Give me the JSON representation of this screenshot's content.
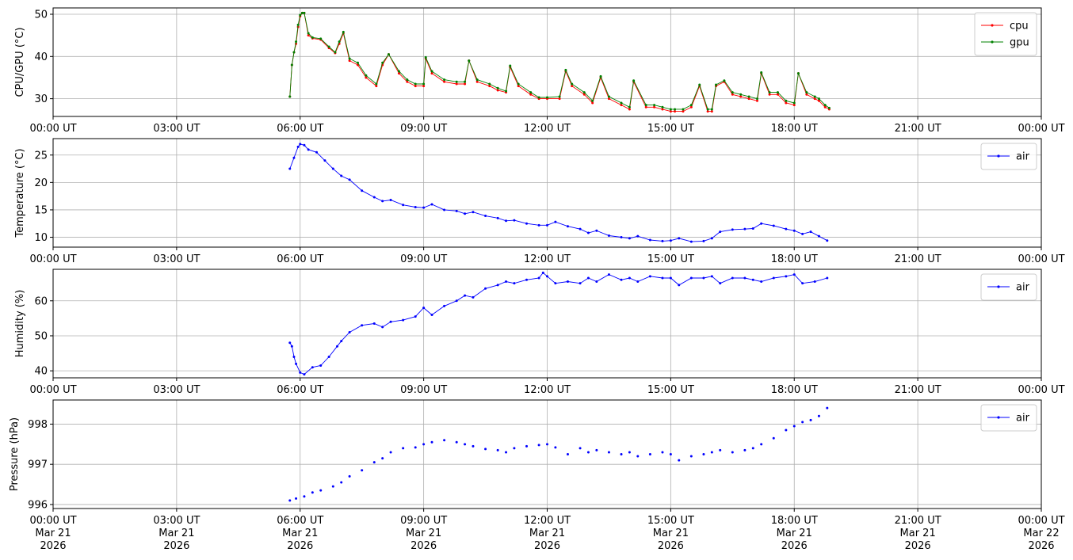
{
  "chart_data": [
    {
      "type": "line",
      "ylabel": "CPU/GPU (°C)",
      "ylim": [
        25.8,
        51.5
      ],
      "yticks": [
        30,
        40,
        50
      ],
      "xlim": [
        0,
        24
      ],
      "xticks": [
        0,
        3,
        6,
        9,
        12,
        15,
        18,
        21,
        24
      ],
      "x_tick_labels": [
        "00:00 UT",
        "03:00 UT",
        "06:00 UT",
        "09:00 UT",
        "12:00 UT",
        "15:00 UT",
        "18:00 UT",
        "21:00 UT",
        "00:00 UT"
      ],
      "x_date_labels": [],
      "grid": true,
      "legend_position": "top-right",
      "series": [
        {
          "name": "cpu",
          "color": "#ff0000",
          "x": [
            5.75,
            5.8,
            5.85,
            5.9,
            5.95,
            6.0,
            6.05,
            6.1,
            6.2,
            6.3,
            6.5,
            6.7,
            6.85,
            6.95,
            7.05,
            7.2,
            7.4,
            7.6,
            7.85,
            8.0,
            8.15,
            8.4,
            8.6,
            8.8,
            9.0,
            9.05,
            9.2,
            9.5,
            9.8,
            10.0,
            10.1,
            10.3,
            10.6,
            10.8,
            11.0,
            11.1,
            11.3,
            11.6,
            11.8,
            12.0,
            12.3,
            12.45,
            12.6,
            12.9,
            13.1,
            13.3,
            13.5,
            13.8,
            14.0,
            14.1,
            14.4,
            14.6,
            14.8,
            15.0,
            15.1,
            15.3,
            15.5,
            15.7,
            15.9,
            16.0,
            16.1,
            16.3,
            16.5,
            16.7,
            16.9,
            17.1,
            17.2,
            17.4,
            17.6,
            17.8,
            18.0,
            18.1,
            18.3,
            18.5,
            18.6,
            18.75,
            18.85
          ],
          "y": [
            30.5,
            38,
            41,
            43,
            47,
            49.5,
            50.3,
            50.3,
            45,
            44.3,
            44,
            42,
            40.8,
            43,
            45.5,
            39,
            38,
            35,
            33,
            38,
            40.5,
            36,
            34,
            33,
            33,
            39.5,
            36,
            34,
            33.5,
            33.5,
            39,
            34,
            33,
            32,
            31.5,
            37.5,
            33,
            31,
            30,
            30,
            30,
            36.5,
            33,
            31,
            29,
            35,
            30,
            28.5,
            27.5,
            34,
            28,
            28,
            27.5,
            27,
            27,
            27,
            28,
            33,
            27,
            27,
            33,
            34,
            31,
            30.5,
            30,
            29.5,
            36,
            31,
            31,
            29,
            28.5,
            36,
            31,
            30,
            29.5,
            28,
            27.5
          ]
        },
        {
          "name": "gpu",
          "color": "#008000",
          "x": [
            5.75,
            5.8,
            5.85,
            5.9,
            5.95,
            6.0,
            6.05,
            6.1,
            6.2,
            6.3,
            6.5,
            6.7,
            6.85,
            6.95,
            7.05,
            7.2,
            7.4,
            7.6,
            7.85,
            8.0,
            8.15,
            8.4,
            8.6,
            8.8,
            9.0,
            9.05,
            9.2,
            9.5,
            9.8,
            10.0,
            10.1,
            10.3,
            10.6,
            10.8,
            11.0,
            11.1,
            11.3,
            11.6,
            11.8,
            12.0,
            12.3,
            12.45,
            12.6,
            12.9,
            13.1,
            13.3,
            13.5,
            13.8,
            14.0,
            14.1,
            14.4,
            14.6,
            14.8,
            15.0,
            15.1,
            15.3,
            15.5,
            15.7,
            15.9,
            16.0,
            16.1,
            16.3,
            16.5,
            16.7,
            16.9,
            17.1,
            17.2,
            17.4,
            17.6,
            17.8,
            18.0,
            18.1,
            18.3,
            18.5,
            18.6,
            18.75,
            18.85
          ],
          "y": [
            30.5,
            38,
            41,
            43.5,
            47.5,
            49.8,
            50.3,
            50.3,
            45.5,
            44.5,
            44.2,
            42.3,
            41,
            43.5,
            45.8,
            39.5,
            38.5,
            35.5,
            33.5,
            38.5,
            40.5,
            36.5,
            34.5,
            33.5,
            33.5,
            39.8,
            36.5,
            34.5,
            34,
            34,
            39,
            34.5,
            33.5,
            32.5,
            31.8,
            37.8,
            33.5,
            31.5,
            30.3,
            30.3,
            30.5,
            36.8,
            33.5,
            31.5,
            29.5,
            35.3,
            30.5,
            29,
            28,
            34.3,
            28.5,
            28.5,
            28,
            27.5,
            27.5,
            27.5,
            28.5,
            33.3,
            27.5,
            27.5,
            33.3,
            34.3,
            31.5,
            31,
            30.5,
            30,
            36.2,
            31.5,
            31.5,
            29.5,
            29,
            36,
            31.5,
            30.5,
            30,
            28.5,
            27.8
          ]
        }
      ]
    },
    {
      "type": "line",
      "ylabel": "Temperature (°C)",
      "ylim": [
        8.2,
        28
      ],
      "yticks": [
        10,
        15,
        20,
        25
      ],
      "xlim": [
        0,
        24
      ],
      "xticks": [
        0,
        3,
        6,
        9,
        12,
        15,
        18,
        21,
        24
      ],
      "x_tick_labels": [
        "00:00 UT",
        "03:00 UT",
        "06:00 UT",
        "09:00 UT",
        "12:00 UT",
        "15:00 UT",
        "18:00 UT",
        "21:00 UT",
        "00:00 UT"
      ],
      "x_date_labels": [],
      "grid": true,
      "legend_position": "top-right",
      "series": [
        {
          "name": "air",
          "color": "#0000ff",
          "x": [
            5.75,
            5.85,
            5.95,
            6.0,
            6.1,
            6.2,
            6.4,
            6.6,
            6.8,
            7.0,
            7.2,
            7.5,
            7.8,
            8.0,
            8.2,
            8.5,
            8.8,
            9.0,
            9.2,
            9.5,
            9.8,
            10.0,
            10.2,
            10.5,
            10.8,
            11.0,
            11.2,
            11.5,
            11.8,
            12.0,
            12.2,
            12.5,
            12.8,
            13.0,
            13.2,
            13.5,
            13.8,
            14.0,
            14.2,
            14.5,
            14.8,
            15.0,
            15.2,
            15.5,
            15.8,
            16.0,
            16.2,
            16.5,
            16.8,
            17.0,
            17.2,
            17.5,
            17.8,
            18.0,
            18.2,
            18.4,
            18.6,
            18.8
          ],
          "y": [
            22.5,
            24.5,
            26.5,
            27,
            26.8,
            26,
            25.5,
            24,
            22.5,
            21.2,
            20.5,
            18.5,
            17.3,
            16.6,
            16.8,
            15.9,
            15.5,
            15.4,
            16,
            15,
            14.8,
            14.3,
            14.6,
            13.9,
            13.5,
            13,
            13.1,
            12.5,
            12.2,
            12.2,
            12.8,
            12,
            11.5,
            10.8,
            11.2,
            10.3,
            10,
            9.8,
            10.2,
            9.5,
            9.3,
            9.4,
            9.8,
            9.2,
            9.3,
            9.8,
            11,
            11.4,
            11.5,
            11.6,
            12.5,
            12.1,
            11.5,
            11.2,
            10.6,
            11,
            10.2,
            9.4
          ]
        }
      ]
    },
    {
      "type": "line",
      "ylabel": "Humidity (%)",
      "ylim": [
        38,
        69
      ],
      "yticks": [
        40,
        50,
        60
      ],
      "xlim": [
        0,
        24
      ],
      "xticks": [
        0,
        3,
        6,
        9,
        12,
        15,
        18,
        21,
        24
      ],
      "x_tick_labels": [
        "00:00 UT",
        "03:00 UT",
        "06:00 UT",
        "09:00 UT",
        "12:00 UT",
        "15:00 UT",
        "18:00 UT",
        "21:00 UT",
        "00:00 UT"
      ],
      "x_date_labels": [],
      "grid": true,
      "legend_position": "top-right",
      "series": [
        {
          "name": "air",
          "color": "#0000ff",
          "x": [
            5.75,
            5.8,
            5.85,
            5.9,
            6.0,
            6.1,
            6.3,
            6.5,
            6.7,
            6.9,
            7.0,
            7.2,
            7.5,
            7.8,
            8.0,
            8.2,
            8.5,
            8.8,
            9.0,
            9.2,
            9.5,
            9.8,
            10.0,
            10.2,
            10.5,
            10.8,
            11.0,
            11.2,
            11.5,
            11.8,
            11.9,
            12.0,
            12.2,
            12.5,
            12.8,
            13.0,
            13.2,
            13.5,
            13.8,
            14.0,
            14.2,
            14.5,
            14.8,
            15.0,
            15.2,
            15.5,
            15.8,
            16.0,
            16.2,
            16.5,
            16.8,
            17.0,
            17.2,
            17.5,
            17.8,
            18.0,
            18.2,
            18.5,
            18.8
          ],
          "y": [
            48,
            47,
            44,
            42,
            39.5,
            39,
            41,
            41.5,
            44,
            47,
            48.5,
            51,
            53,
            53.5,
            52.5,
            54,
            54.5,
            55.5,
            58,
            56,
            58.5,
            60,
            61.5,
            61,
            63.5,
            64.5,
            65.5,
            65,
            66,
            66.5,
            68,
            67,
            65,
            65.5,
            65,
            66.5,
            65.5,
            67.5,
            66,
            66.5,
            65.5,
            67,
            66.5,
            66.5,
            64.5,
            66.5,
            66.5,
            67,
            65,
            66.5,
            66.5,
            66,
            65.5,
            66.5,
            67,
            67.5,
            65,
            65.5,
            66.5
          ]
        }
      ]
    },
    {
      "type": "scatter",
      "ylabel": "Pressure (hPa)",
      "ylim": [
        995.9,
        998.6
      ],
      "yticks": [
        996,
        997,
        998
      ],
      "xlim": [
        0,
        24
      ],
      "xticks": [
        0,
        3,
        6,
        9,
        12,
        15,
        18,
        21,
        24
      ],
      "x_tick_labels": [
        "00:00 UT",
        "03:00 UT",
        "06:00 UT",
        "09:00 UT",
        "12:00 UT",
        "15:00 UT",
        "18:00 UT",
        "21:00 UT",
        "00:00 UT"
      ],
      "x_date_labels": [
        "Mar 21\n2026",
        "Mar 21\n2026",
        "Mar 21\n2026",
        "Mar 21\n2026",
        "Mar 21\n2026",
        "Mar 21\n2026",
        "Mar 21\n2026",
        "Mar 21\n2026",
        "Mar 22\n2026"
      ],
      "grid": true,
      "legend_position": "top-right",
      "series": [
        {
          "name": "air",
          "color": "#0000ff",
          "x": [
            5.75,
            5.9,
            6.1,
            6.3,
            6.5,
            6.8,
            7.0,
            7.2,
            7.5,
            7.8,
            8.0,
            8.2,
            8.5,
            8.8,
            9.0,
            9.2,
            9.5,
            9.8,
            10.0,
            10.2,
            10.5,
            10.8,
            11.0,
            11.2,
            11.5,
            11.8,
            12.0,
            12.2,
            12.5,
            12.8,
            13.0,
            13.2,
            13.5,
            13.8,
            14.0,
            14.2,
            14.5,
            14.8,
            15.0,
            15.2,
            15.5,
            15.8,
            16.0,
            16.2,
            16.5,
            16.8,
            17.0,
            17.2,
            17.5,
            17.8,
            18.0,
            18.2,
            18.4,
            18.6,
            18.8
          ],
          "y": [
            996.1,
            996.15,
            996.2,
            996.3,
            996.35,
            996.45,
            996.55,
            996.7,
            996.85,
            997.05,
            997.15,
            997.3,
            997.4,
            997.42,
            997.5,
            997.55,
            997.6,
            997.55,
            997.5,
            997.45,
            997.38,
            997.35,
            997.3,
            997.4,
            997.45,
            997.48,
            997.5,
            997.42,
            997.25,
            997.4,
            997.3,
            997.35,
            997.3,
            997.25,
            997.3,
            997.2,
            997.25,
            997.3,
            997.25,
            997.1,
            997.2,
            997.25,
            997.3,
            997.35,
            997.3,
            997.35,
            997.4,
            997.5,
            997.65,
            997.85,
            997.95,
            998.05,
            998.1,
            998.2,
            998.4
          ]
        }
      ]
    }
  ]
}
